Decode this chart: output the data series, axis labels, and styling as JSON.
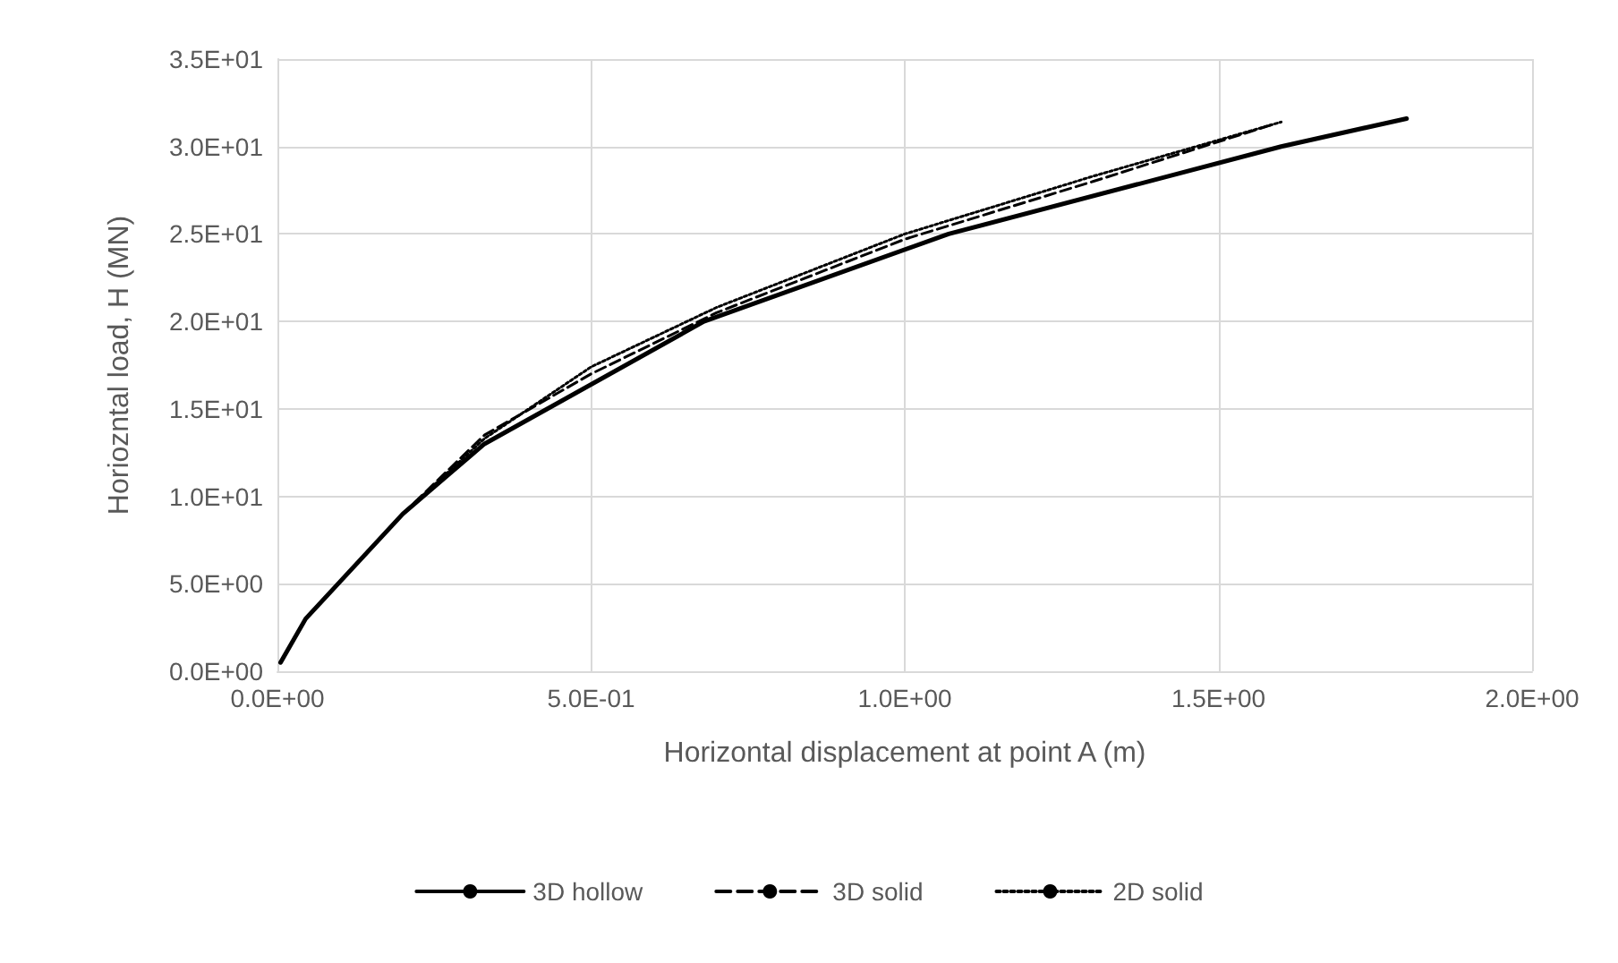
{
  "chart_data": {
    "type": "line",
    "xlabel": "Horizontal displacement at point A (m)",
    "ylabel": "Horiozntal load, H (MN)",
    "xlim": [
      0,
      2
    ],
    "xticks": [
      {
        "value": 0,
        "label": "0.0E+00"
      },
      {
        "value": 0.5,
        "label": "5.0E-01"
      },
      {
        "value": 1,
        "label": "1.0E+00"
      },
      {
        "value": 1.5,
        "label": "1.5E+00"
      },
      {
        "value": 2,
        "label": "2.0E+00"
      }
    ],
    "ylim": [
      0,
      35
    ],
    "yticks": [
      {
        "value": 0,
        "label": "0.0E+00"
      },
      {
        "value": 5,
        "label": "5.0E+00"
      },
      {
        "value": 10,
        "label": "1.0E+01"
      },
      {
        "value": 15,
        "label": "1.5E+01"
      },
      {
        "value": 20,
        "label": "2.0E+01"
      },
      {
        "value": 25,
        "label": "2.5E+01"
      },
      {
        "value": 30,
        "label": "3.0E+01"
      },
      {
        "value": 35,
        "label": "3.5E+01"
      }
    ],
    "grid": true,
    "legend": "bottom",
    "marker": "none",
    "series": [
      {
        "name": "3D hollow",
        "color": "#000000",
        "line_style": "solid",
        "x": [
          0.005,
          0.045,
          0.2,
          0.33,
          0.68,
          1.07,
          1.6,
          1.8
        ],
        "values": [
          0.5,
          3,
          9,
          13,
          20,
          25,
          30,
          31.6
        ]
      },
      {
        "name": "3D solid",
        "color": "#000000",
        "line_style": "dashed",
        "x": [
          0.005,
          0.045,
          0.2,
          0.33,
          0.5,
          0.7,
          1.0,
          1.3,
          1.59
        ],
        "values": [
          0.5,
          3,
          9,
          13.5,
          17,
          20.5,
          24.7,
          28,
          31.3
        ]
      },
      {
        "name": "2D solid",
        "color": "#000000",
        "line_style": "dotted",
        "x": [
          0.005,
          0.045,
          0.2,
          0.33,
          0.5,
          0.7,
          1.0,
          1.3,
          1.6
        ],
        "values": [
          0.5,
          3,
          9,
          13.3,
          17.4,
          20.8,
          25,
          28.3,
          31.4
        ]
      }
    ]
  }
}
